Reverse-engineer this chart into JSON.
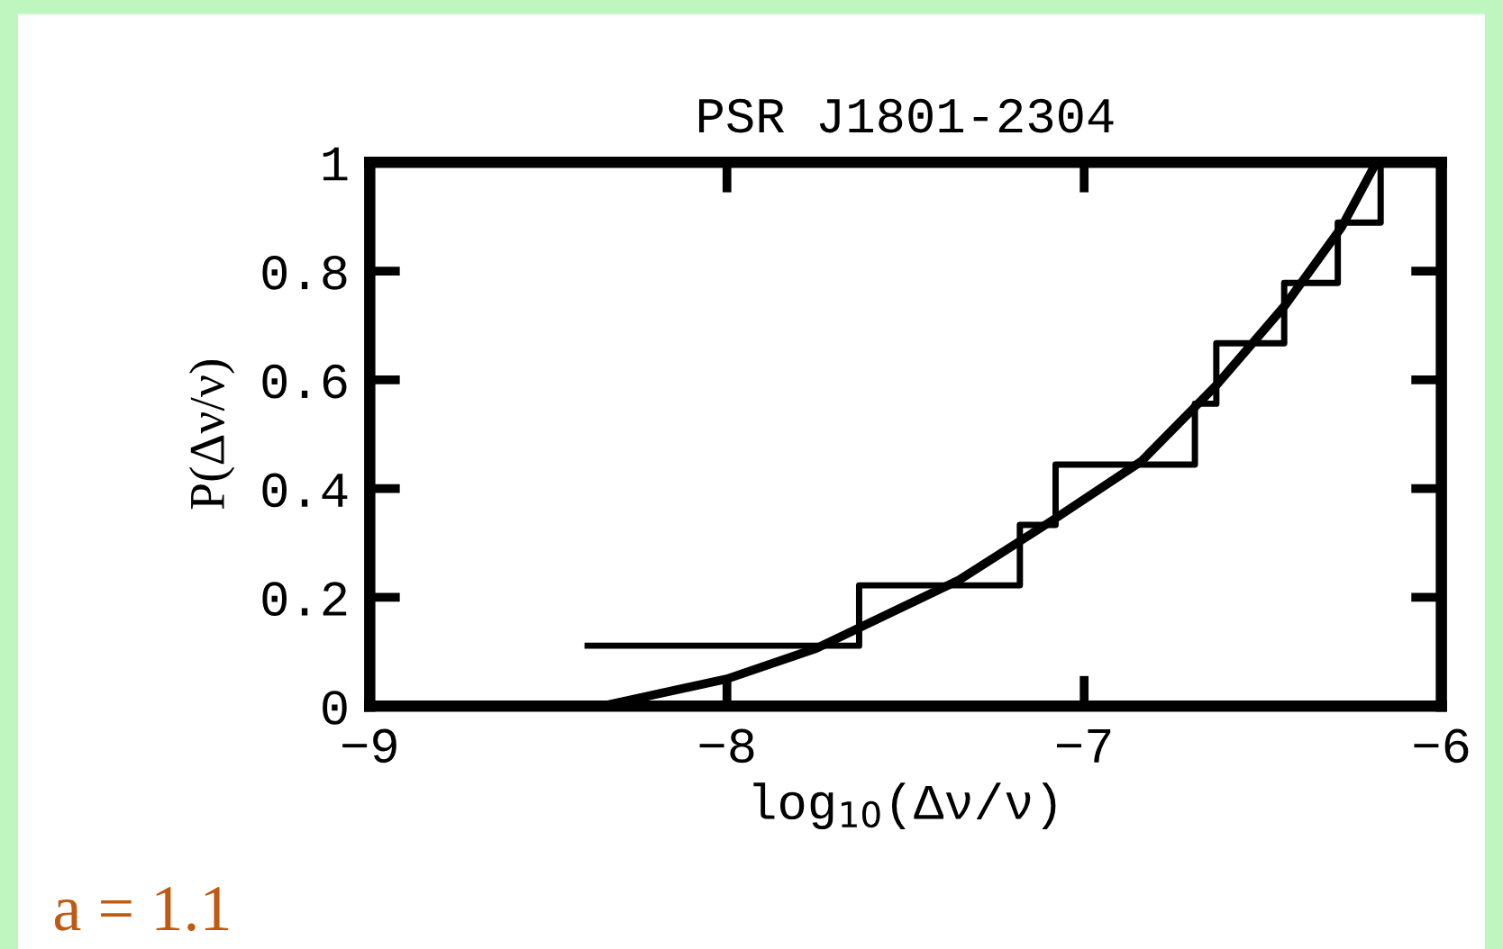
{
  "chart_data": {
    "type": "step",
    "title": "PSR J1801-2304",
    "xlabel": "log$_{10}$(Δν/ν)",
    "ylabel": "P(Δν/ν)",
    "annotations": [
      "a = 1.1"
    ],
    "series": [
      {
        "color": "#000000",
        "x": [
          -8.39,
          -7.63,
          -7.18,
          -7.08,
          -6.69,
          -6.63,
          -6.44,
          -6.29,
          -6.17
        ],
        "values": [
          0.111,
          0.222,
          0.333,
          0.444,
          0.556,
          0.667,
          0.778,
          0.889,
          1.0
        ]
      },
      {
        "type": "line",
        "color": "#000000",
        "x": [
          -8.35,
          -8.0,
          -7.75,
          -7.35,
          -7.09,
          -6.84,
          -6.63,
          -6.44,
          -6.28,
          -6.19
        ],
        "values": [
          0.0,
          0.05,
          0.106,
          0.232,
          0.341,
          0.45,
          0.59,
          0.735,
          0.88,
          0.99
        ]
      }
    ],
    "xlim": [
      -9,
      -6
    ],
    "xticks": [
      {
        "value": -9,
        "label": "−9"
      },
      {
        "value": -8,
        "label": "−8"
      },
      {
        "value": -7,
        "label": "−7"
      },
      {
        "value": -6,
        "label": "−6"
      }
    ],
    "ylim": [
      0,
      1
    ],
    "yticks": [
      0,
      0.2,
      0.4,
      0.6,
      0.8,
      1
    ],
    "grid": false,
    "legend": false
  }
}
